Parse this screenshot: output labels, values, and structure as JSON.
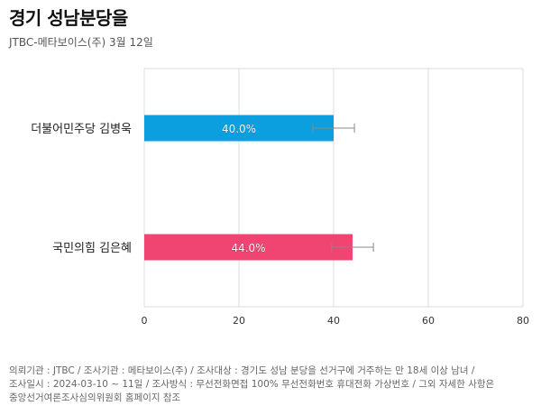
{
  "header": {
    "title": "경기 성남분당을",
    "subtitle": "JTBC-메타보이스(주) 3월 12일"
  },
  "chart_data": {
    "type": "bar",
    "orientation": "horizontal",
    "title": "경기 성남분당을",
    "subtitle": "JTBC-메타보이스(주) 3월 12일",
    "categories": [
      "더불어민주당 김병욱",
      "국민의힘 김은혜"
    ],
    "values": [
      40.0,
      44.0
    ],
    "value_labels": [
      "40.0%",
      "44.0%"
    ],
    "error_margin": 4.4,
    "colors": [
      "#0b9fe0",
      "#f04472"
    ],
    "xlim": [
      0,
      80
    ],
    "xticks": [
      "0",
      "20",
      "40",
      "60",
      "80"
    ],
    "xtick_values": [
      0,
      20,
      40,
      60,
      80
    ],
    "grid": true,
    "xlabel": "",
    "ylabel": ""
  },
  "footer": {
    "lines": [
      "의뢰기관 : JTBC / 조사기관 : 메타보이스(주) / 조사대상 : 경기도 성남 분당을 선거구에 거주하는 만 18세 이상 남녀 /",
      "조사일시 : 2024-03-10 ~ 11일 / 조사방식 : 무선전화면접 100% 무선전화번호 휴대전화 가상번호 / 그외 자세한 사항은",
      "중앙선거여론조사심의위원회 홈페이지 참조"
    ]
  }
}
